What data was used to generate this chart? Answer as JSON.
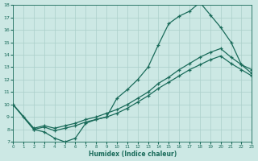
{
  "xlabel": "Humidex (Indice chaleur)",
  "xlim": [
    0,
    23
  ],
  "ylim": [
    7,
    18
  ],
  "yticks": [
    7,
    8,
    9,
    10,
    11,
    12,
    13,
    14,
    15,
    16,
    17,
    18
  ],
  "xticks": [
    0,
    1,
    2,
    3,
    4,
    5,
    6,
    7,
    8,
    9,
    10,
    11,
    12,
    13,
    14,
    15,
    16,
    17,
    18,
    19,
    20,
    21,
    22,
    23
  ],
  "bg_color": "#cce8e4",
  "line_color": "#1a6b5a",
  "grid_color": "#aacfca",
  "line1_x": [
    0,
    1,
    2,
    3,
    4,
    5,
    6,
    7,
    8,
    9,
    10,
    11,
    12,
    13,
    14,
    15,
    16,
    17,
    18,
    19,
    20,
    21,
    22,
    23
  ],
  "line1_y": [
    10,
    9,
    8,
    7.8,
    7.3,
    7.0,
    7.3,
    8.5,
    8.8,
    9.0,
    10.5,
    11.2,
    12.0,
    13.0,
    14.8,
    16.5,
    17.1,
    17.5,
    18.2,
    17.2,
    16.2,
    15.0,
    13.2,
    12.5
  ],
  "line2_x": [
    0,
    2,
    3,
    4,
    5,
    6,
    7,
    8,
    9,
    10,
    11,
    12,
    13,
    14,
    15,
    16,
    17,
    18,
    19,
    20,
    21,
    22,
    23
  ],
  "line2_y": [
    10,
    8.1,
    8.3,
    8.1,
    8.3,
    8.5,
    8.8,
    9.0,
    9.3,
    9.6,
    10.0,
    10.5,
    11.0,
    11.7,
    12.2,
    12.8,
    13.3,
    13.8,
    14.2,
    14.5,
    13.8,
    13.2,
    12.8
  ],
  "line3_x": [
    0,
    2,
    3,
    4,
    5,
    6,
    7,
    8,
    9,
    10,
    11,
    12,
    13,
    14,
    15,
    16,
    17,
    18,
    19,
    20,
    21,
    22,
    23
  ],
  "line3_y": [
    10,
    8.0,
    8.2,
    7.9,
    8.1,
    8.3,
    8.6,
    8.8,
    9.0,
    9.3,
    9.7,
    10.2,
    10.7,
    11.3,
    11.8,
    12.3,
    12.8,
    13.2,
    13.6,
    13.9,
    13.3,
    12.8,
    12.3
  ]
}
